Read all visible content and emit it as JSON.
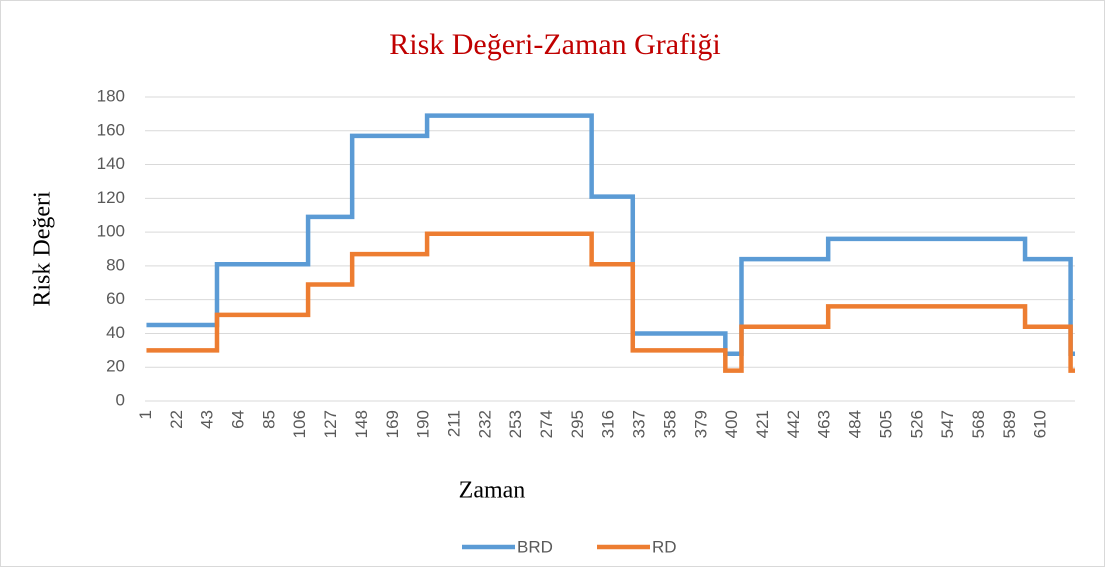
{
  "chart_data": {
    "type": "line",
    "title": "Risk Değeri-Zaman Grafiği",
    "xlabel": "Zaman",
    "ylabel": "Risk Değeri",
    "xlim": [
      0,
      633
    ],
    "xticks": [
      1,
      22,
      43,
      64,
      85,
      106,
      127,
      148,
      169,
      190,
      211,
      232,
      253,
      274,
      295,
      316,
      337,
      358,
      379,
      400,
      421,
      442,
      463,
      484,
      505,
      526,
      547,
      568,
      589,
      610
    ],
    "ylim": [
      0,
      180
    ],
    "yticks": [
      0,
      20,
      40,
      60,
      80,
      100,
      120,
      140,
      160,
      180
    ],
    "grid": true,
    "legend": "bottom",
    "series": [
      {
        "name": "BRD",
        "color": "#5b9bd5",
        "x": [
          1,
          49,
          49,
          111,
          111,
          141,
          141,
          192,
          192,
          304,
          304,
          332,
          332,
          395,
          395,
          406,
          406,
          465,
          465,
          599,
          599,
          630,
          630,
          633
        ],
        "values": [
          45,
          45,
          81,
          81,
          109,
          109,
          157,
          157,
          169,
          169,
          121,
          121,
          40,
          40,
          28,
          28,
          84,
          84,
          96,
          96,
          84,
          84,
          28,
          28
        ]
      },
      {
        "name": "RD",
        "color": "#ed7d31",
        "x": [
          1,
          49,
          49,
          111,
          111,
          141,
          141,
          192,
          192,
          304,
          304,
          332,
          332,
          395,
          395,
          406,
          406,
          465,
          465,
          599,
          599,
          630,
          630,
          633
        ],
        "values": [
          30,
          30,
          51,
          51,
          69,
          69,
          87,
          87,
          99,
          99,
          81,
          81,
          30,
          30,
          18,
          18,
          44,
          44,
          56,
          56,
          44,
          44,
          18,
          18
        ]
      }
    ]
  }
}
